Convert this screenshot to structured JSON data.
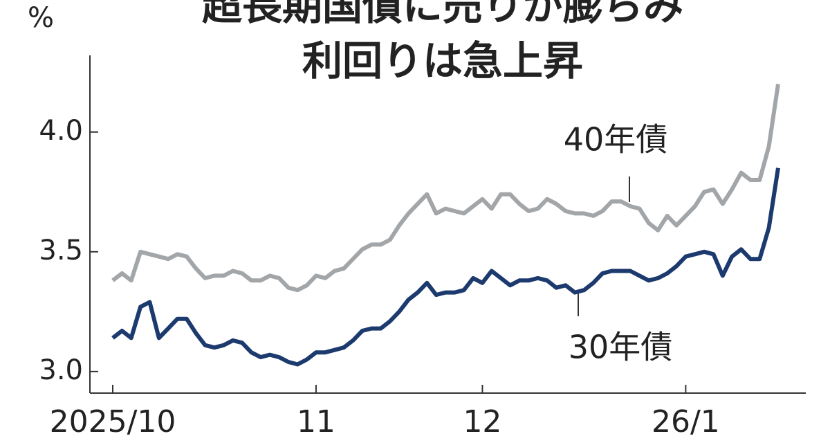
{
  "chart_data": {
    "type": "line",
    "title": "超長期国債に売りが膨らみ",
    "subtitle": "利回りは急上昇",
    "y_label": "%",
    "categories": [
      "2025/10",
      null,
      null,
      null,
      null,
      null,
      null,
      null,
      null,
      null,
      null,
      null,
      null,
      null,
      null,
      null,
      null,
      null,
      null,
      null,
      null,
      null,
      "11",
      null,
      null,
      null,
      null,
      null,
      null,
      null,
      null,
      null,
      null,
      null,
      null,
      null,
      null,
      null,
      null,
      null,
      "12",
      null,
      null,
      null,
      null,
      null,
      null,
      null,
      null,
      null,
      null,
      null,
      null,
      null,
      null,
      null,
      null,
      null,
      null,
      null,
      null,
      null,
      "26/1",
      null,
      null,
      null,
      null,
      null,
      null,
      null,
      null,
      null,
      null
    ],
    "series": [
      {
        "name": "40年債",
        "color": "#a3a6a9",
        "values": [
          3.38,
          3.41,
          3.38,
          3.5,
          3.49,
          3.48,
          3.47,
          3.49,
          3.48,
          3.43,
          3.39,
          3.4,
          3.4,
          3.42,
          3.41,
          3.38,
          3.38,
          3.4,
          3.39,
          3.35,
          3.34,
          3.36,
          3.4,
          3.39,
          3.42,
          3.43,
          3.47,
          3.51,
          3.53,
          3.53,
          3.55,
          3.61,
          3.66,
          3.7,
          3.74,
          3.66,
          3.68,
          3.67,
          3.66,
          3.69,
          3.72,
          3.68,
          3.74,
          3.74,
          3.7,
          3.67,
          3.68,
          3.72,
          3.7,
          3.67,
          3.66,
          3.66,
          3.65,
          3.67,
          3.71,
          3.71,
          3.69,
          3.68,
          3.62,
          3.59,
          3.65,
          3.61,
          3.65,
          3.69,
          3.75,
          3.76,
          3.7,
          3.76,
          3.83,
          3.8,
          3.8,
          3.94,
          4.2
        ]
      },
      {
        "name": "30年債",
        "color": "#1c3a6e",
        "values": [
          3.14,
          3.17,
          3.14,
          3.27,
          3.29,
          3.14,
          3.18,
          3.22,
          3.22,
          3.16,
          3.11,
          3.1,
          3.11,
          3.13,
          3.12,
          3.08,
          3.06,
          3.07,
          3.06,
          3.04,
          3.03,
          3.05,
          3.08,
          3.08,
          3.09,
          3.1,
          3.13,
          3.17,
          3.18,
          3.18,
          3.21,
          3.25,
          3.3,
          3.33,
          3.37,
          3.32,
          3.33,
          3.33,
          3.34,
          3.39,
          3.37,
          3.42,
          3.39,
          3.36,
          3.38,
          3.38,
          3.39,
          3.38,
          3.35,
          3.36,
          3.33,
          3.34,
          3.37,
          3.41,
          3.42,
          3.42,
          3.42,
          3.4,
          3.38,
          3.39,
          3.41,
          3.44,
          3.48,
          3.49,
          3.5,
          3.49,
          3.4,
          3.48,
          3.51,
          3.47,
          3.47,
          3.6,
          3.85
        ]
      }
    ],
    "ylim": [
      2.91,
      4.32
    ],
    "yticks": [
      {
        "value": 3,
        "label": "3.0"
      },
      3.5,
      {
        "value": 4,
        "label": "4.0"
      }
    ]
  }
}
